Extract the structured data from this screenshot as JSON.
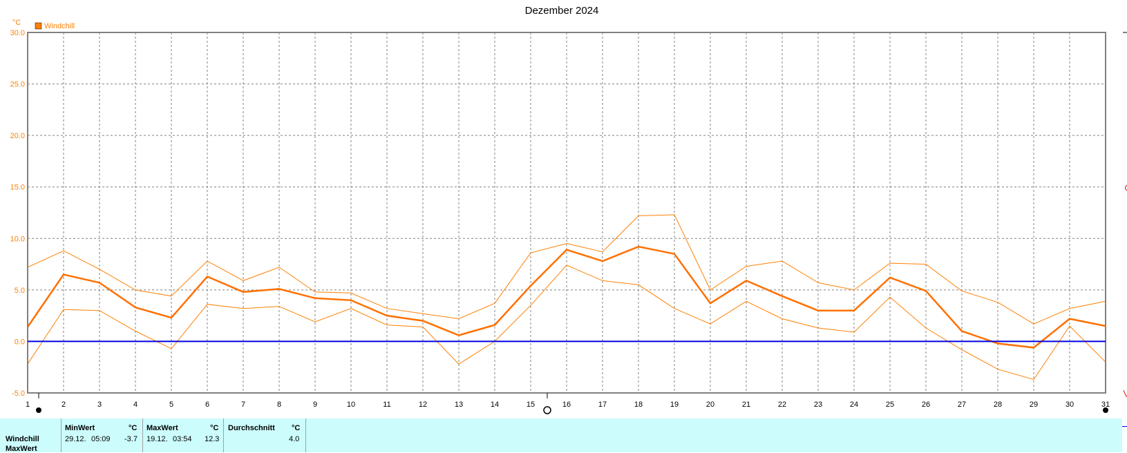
{
  "chart_data": {
    "type": "line",
    "title": "Dezember 2024",
    "ylabel": "°C",
    "ylim": [
      -5,
      30
    ],
    "y_ticks": [
      "30.0",
      "25.0",
      "20.0",
      "15.0",
      "10.0",
      "5.0",
      "0.0",
      "-5.0"
    ],
    "y_tick_values": [
      30,
      25,
      20,
      15,
      10,
      5,
      0,
      -5
    ],
    "categories": [
      "1",
      "2",
      "3",
      "4",
      "5",
      "6",
      "7",
      "8",
      "9",
      "10",
      "11",
      "12",
      "13",
      "14",
      "15",
      "16",
      "17",
      "18",
      "19",
      "20",
      "21",
      "22",
      "23",
      "24",
      "25",
      "26",
      "27",
      "28",
      "29",
      "30",
      "31"
    ],
    "legend": [
      "Windchill"
    ],
    "zero_line": 0,
    "series": [
      {
        "name": "Windchill max",
        "values": [
          7.2,
          8.8,
          7.0,
          5.0,
          4.4,
          7.8,
          5.9,
          7.2,
          4.8,
          4.7,
          3.2,
          2.7,
          2.2,
          3.7,
          8.6,
          9.5,
          8.7,
          12.2,
          12.3,
          5.0,
          7.3,
          7.8,
          5.7,
          5.0,
          7.6,
          7.5,
          4.9,
          3.8,
          1.7,
          3.2,
          3.9
        ]
      },
      {
        "name": "Windchill",
        "values": [
          1.4,
          6.5,
          5.7,
          3.3,
          2.3,
          6.3,
          4.8,
          5.1,
          4.2,
          4.0,
          2.5,
          2.0,
          0.6,
          1.6,
          5.4,
          8.9,
          7.8,
          9.2,
          8.5,
          3.7,
          5.9,
          4.4,
          3.0,
          3.0,
          6.2,
          4.9,
          1.0,
          -0.2,
          -0.6,
          2.2,
          1.5
        ]
      },
      {
        "name": "Windchill min",
        "values": [
          -2.2,
          3.1,
          3.0,
          1.0,
          -0.7,
          3.6,
          3.2,
          3.4,
          1.9,
          3.2,
          1.6,
          1.4,
          -2.2,
          0.0,
          3.5,
          7.4,
          5.9,
          5.5,
          3.2,
          1.7,
          3.9,
          2.2,
          1.3,
          0.9,
          4.3,
          1.3,
          -0.8,
          -2.7,
          -3.7,
          1.5,
          -2.0
        ]
      }
    ],
    "colors": {
      "main": "#ff7000",
      "minmax": "#ff8000",
      "zero": "#0000e0",
      "grid": "#808080",
      "legend_box": "#ff8000"
    }
  },
  "stats": {
    "row_label": "Windchill",
    "row_label_2": "MaxWert",
    "min_header": "MinWert",
    "min_unit": "°C",
    "min_date": "29.12.",
    "min_time": "05:09",
    "min_value": "-3.7",
    "max_header": "MaxWert",
    "max_unit": "°C",
    "max_date": "19.12.",
    "max_time": "03:54",
    "max_value": "12.3",
    "avg_header": "Durchschnitt",
    "avg_unit": "°C",
    "avg_value": "4.0",
    "background": "#ccfcfc"
  }
}
